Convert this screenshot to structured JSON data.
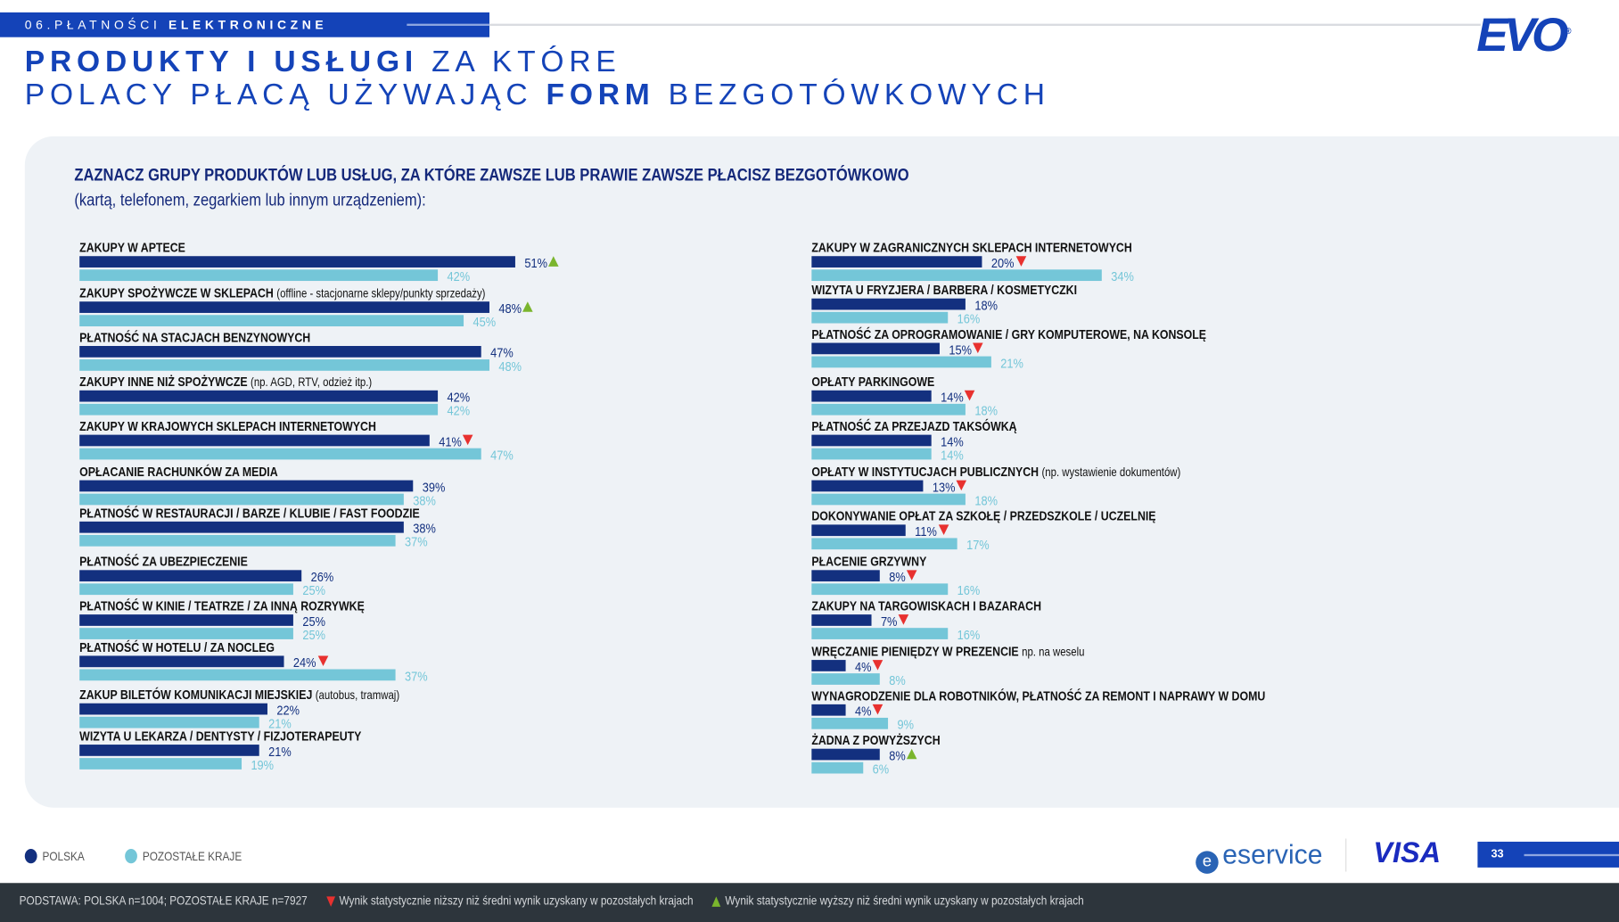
{
  "header": {
    "section_number": "06.",
    "section_light": "PŁATNOŚCI",
    "section_bold": "ELEKTRONICZNE",
    "logo": "EVO",
    "title_line1_bold": "PRODUKTY I USŁUGI",
    "title_line1_light": "ZA KTÓRE",
    "title_line2_light": "POLACY PŁACĄ UŻYWAJĄC",
    "title_line2_mid": "FORM",
    "title_line2_end": "BEZGOTÓWKOWYCH"
  },
  "question": {
    "line1": "Zaznacz grupy produktów lub usług, za które zawsze lub prawie zawsze płacisz bezgotówkowo",
    "line2": "(kartą, telefonem, zegarkiem lub innym urządzeniem):"
  },
  "colors": {
    "polska": "#13307f",
    "other": "#74c6d8",
    "down": "#e8312f",
    "up": "#7ab52d",
    "accent": "#1443b8"
  },
  "chart_data": {
    "type": "bar",
    "orientation": "horizontal",
    "unit": "%",
    "series": [
      {
        "name": "POLSKA"
      },
      {
        "name": "POZOSTAŁE KRAJE"
      }
    ],
    "columns": [
      [
        {
          "label": "ZAKUPY W APTECE",
          "note": "",
          "polska": 51,
          "other": 42,
          "sig": "up"
        },
        {
          "label": "ZAKUPY SPOŻYWCZE W SKLEPACH",
          "note": "(offline - stacjonarne sklepy/punkty sprzedaży)",
          "polska": 48,
          "other": 45,
          "sig": "up"
        },
        {
          "label": "PŁATNOŚĆ NA STACJACH BENZYNOWYCH",
          "note": "",
          "polska": 47,
          "other": 48,
          "sig": ""
        },
        {
          "label": "ZAKUPY INNE NIŻ SPOŻYWCZE",
          "note": "(np. AGD, RTV, odzież itp.)",
          "polska": 42,
          "other": 42,
          "sig": ""
        },
        {
          "label": "ZAKUPY W KRAJOWYCH SKLEPACH INTERNETOWYCH",
          "note": "",
          "polska": 41,
          "other": 47,
          "sig": "down"
        },
        {
          "label": "OPŁACANIE RACHUNKÓW ZA MEDIA",
          "note": "",
          "polska": 39,
          "other": 38,
          "sig": ""
        },
        {
          "label": "PŁATNOŚĆ W RESTAURACJI / BARZE / KLUBIE / FAST FOODZIE",
          "note": "",
          "polska": 38,
          "other": 37,
          "sig": ""
        },
        {
          "label": "PŁATNOŚĆ ZA UBEZPIECZENIE",
          "note": "",
          "polska": 26,
          "other": 25,
          "sig": ""
        },
        {
          "label": "PŁATNOŚĆ W KINIE / TEATRZE / ZA INNĄ ROZRYWKĘ",
          "note": "",
          "polska": 25,
          "other": 25,
          "sig": ""
        },
        {
          "label": "PŁATNOŚĆ W HOTELU / ZA NOCLEG",
          "note": "",
          "polska": 24,
          "other": 37,
          "sig": "down"
        },
        {
          "label": "ZAKUP BILETÓW KOMUNIKACJI MIEJSKIEJ",
          "note": "(autobus, tramwaj)",
          "polska": 22,
          "other": 21,
          "sig": ""
        },
        {
          "label": "WIZYTA U LEKARZA / DENTYSTY / FIZJOTERAPEUTY",
          "note": "",
          "polska": 21,
          "other": 19,
          "sig": ""
        }
      ],
      [
        {
          "label": "ZAKUPY W ZAGRANICZNYCH SKLEPACH INTERNETOWYCH",
          "note": "",
          "polska": 20,
          "other": 34,
          "sig": "down"
        },
        {
          "label": "WIZYTA U FRYZJERA / BARBERA / KOSMETYCZKI",
          "note": "",
          "polska": 18,
          "other": 16,
          "sig": ""
        },
        {
          "label": "PŁATNOŚĆ ZA OPROGRAMOWANIE / GRY KOMPUTEROWE, NA KONSOLĘ",
          "note": "",
          "polska": 15,
          "other": 21,
          "sig": "down"
        },
        {
          "label": "OPŁATY PARKINGOWE",
          "note": "",
          "polska": 14,
          "other": 18,
          "sig": "down"
        },
        {
          "label": "PŁATNOŚĆ ZA PRZEJAZD TAKSÓWKĄ",
          "note": "",
          "polska": 14,
          "other": 14,
          "sig": ""
        },
        {
          "label": "OPŁATY W INSTYTUCJACH PUBLICZNYCH",
          "note": "(np. wystawienie dokumentów)",
          "polska": 13,
          "other": 18,
          "sig": "down"
        },
        {
          "label": "DOKONYWANIE OPŁAT ZA SZKOŁĘ / PRZEDSZKOLE / UCZELNIĘ",
          "note": "",
          "polska": 11,
          "other": 17,
          "sig": "down"
        },
        {
          "label": "PŁACENIE GRZYWNY",
          "note": "",
          "polska": 8,
          "other": 16,
          "sig": "down"
        },
        {
          "label": "ZAKUPY NA TARGOWISKACH I BAZARACH",
          "note": "",
          "polska": 7,
          "other": 16,
          "sig": "down"
        },
        {
          "label": "WRĘCZANIE PIENIĘDZY W PREZENCIE",
          "note": "np. na weselu",
          "polska": 4,
          "other": 8,
          "sig": "down"
        },
        {
          "label": "WYNAGRODZENIE DLA ROBOTNIKÓW, PŁATNOŚĆ ZA REMONT I NAPRAWY W DOMU",
          "note": "",
          "polska": 4,
          "other": 9,
          "sig": "down"
        },
        {
          "label": "ŻADNA Z POWYŻSZYCH",
          "note": "",
          "polska": 8,
          "other": 6,
          "sig": "up"
        }
      ]
    ]
  },
  "legend": {
    "polska": "POLSKA",
    "other": "POZOSTAŁE KRAJE"
  },
  "partners": {
    "eservice": "eservice",
    "visa": "VISA"
  },
  "page_number": "33",
  "footer": {
    "base": "PODSTAWA: POLSKA n=1004; POZOSTAŁE KRAJE n=7927",
    "down_note": "Wynik statystycznie niższy niż średni wynik uzyskany w pozostałych krajach",
    "up_note": "Wynik statystycznie wyższy niż średni wynik uzyskany w pozostałych krajach"
  }
}
